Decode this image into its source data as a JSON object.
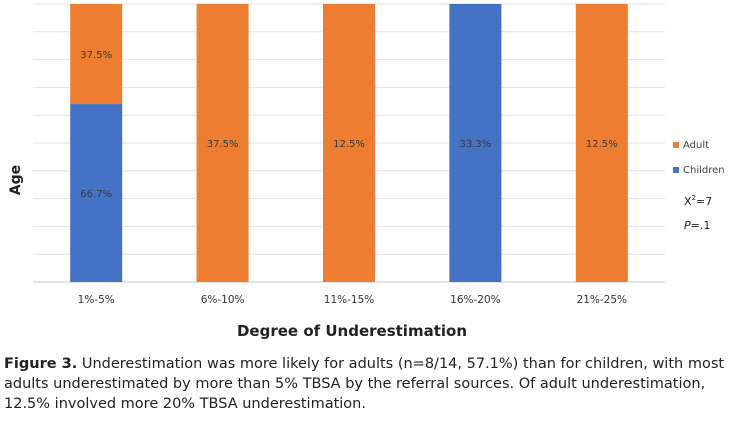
{
  "chart_data": {
    "type": "bar",
    "stacked": true,
    "categories": [
      "1%-5%",
      "6%-10%",
      "11%-15%",
      "16%-20%",
      "21%-25%"
    ],
    "series": [
      {
        "name": "Children",
        "color": "#4472C4",
        "values": [
          66.7,
          0,
          0,
          33.3,
          0
        ],
        "labels": [
          "66.7%",
          "",
          "",
          "33.3%",
          ""
        ]
      },
      {
        "name": "Adult",
        "color": "#ED7D31",
        "values": [
          37.5,
          37.5,
          12.5,
          0,
          12.5
        ],
        "labels": [
          "37.5%",
          "37.5%",
          "12.5%",
          "",
          "12.5%"
        ]
      }
    ],
    "xlabel": "Degree of Underestimation",
    "ylabel": "Age",
    "legend": [
      {
        "name": "Adult",
        "color": "#ED7D31"
      },
      {
        "name": "Children",
        "color": "#4472C4"
      }
    ],
    "legend_position": "right",
    "annotations": {
      "chi_square_prefix": "X",
      "chi_square_sup": "2",
      "chi_square_value": "=7",
      "p_prefix": "P",
      "p_value": "=.1"
    },
    "grid": true
  },
  "caption": {
    "label": "Figure 3.",
    "text": " Underestimation was more likely for adults (n=8/14, 57.1%) than for children, with most adults underestimated by more than 5% TBSA by the referral sources. Of adult underestimation, 12.5% involved more 20% TBSA underestimation."
  }
}
